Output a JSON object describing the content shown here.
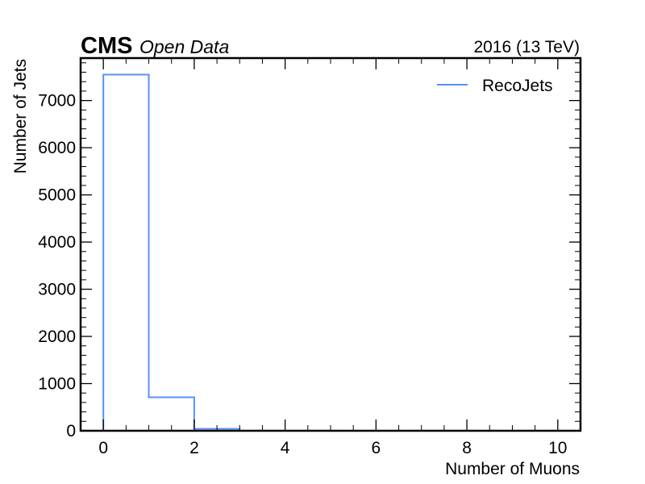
{
  "header": {
    "experiment": "CMS",
    "tag": "Open Data",
    "energy": "2016 (13 TeV)"
  },
  "chart_data": {
    "type": "histogram",
    "xlabel": "Number of Muons",
    "ylabel": "Number of Jets",
    "xlim": [
      -0.5,
      10.5
    ],
    "ylim": [
      0,
      7900
    ],
    "xticks": [
      0,
      2,
      4,
      6,
      8,
      10
    ],
    "yticks": [
      0,
      1000,
      2000,
      3000,
      4000,
      5000,
      6000,
      7000
    ],
    "legend_position": "top-right",
    "grid": false,
    "series": [
      {
        "name": "RecoJets",
        "color": "#5790fc",
        "bin_edges": [
          0,
          1,
          2,
          3,
          4,
          5,
          6,
          7,
          8,
          9,
          10
        ],
        "values": [
          7550,
          710,
          40,
          0,
          0,
          0,
          0,
          0,
          0,
          0
        ]
      }
    ]
  }
}
